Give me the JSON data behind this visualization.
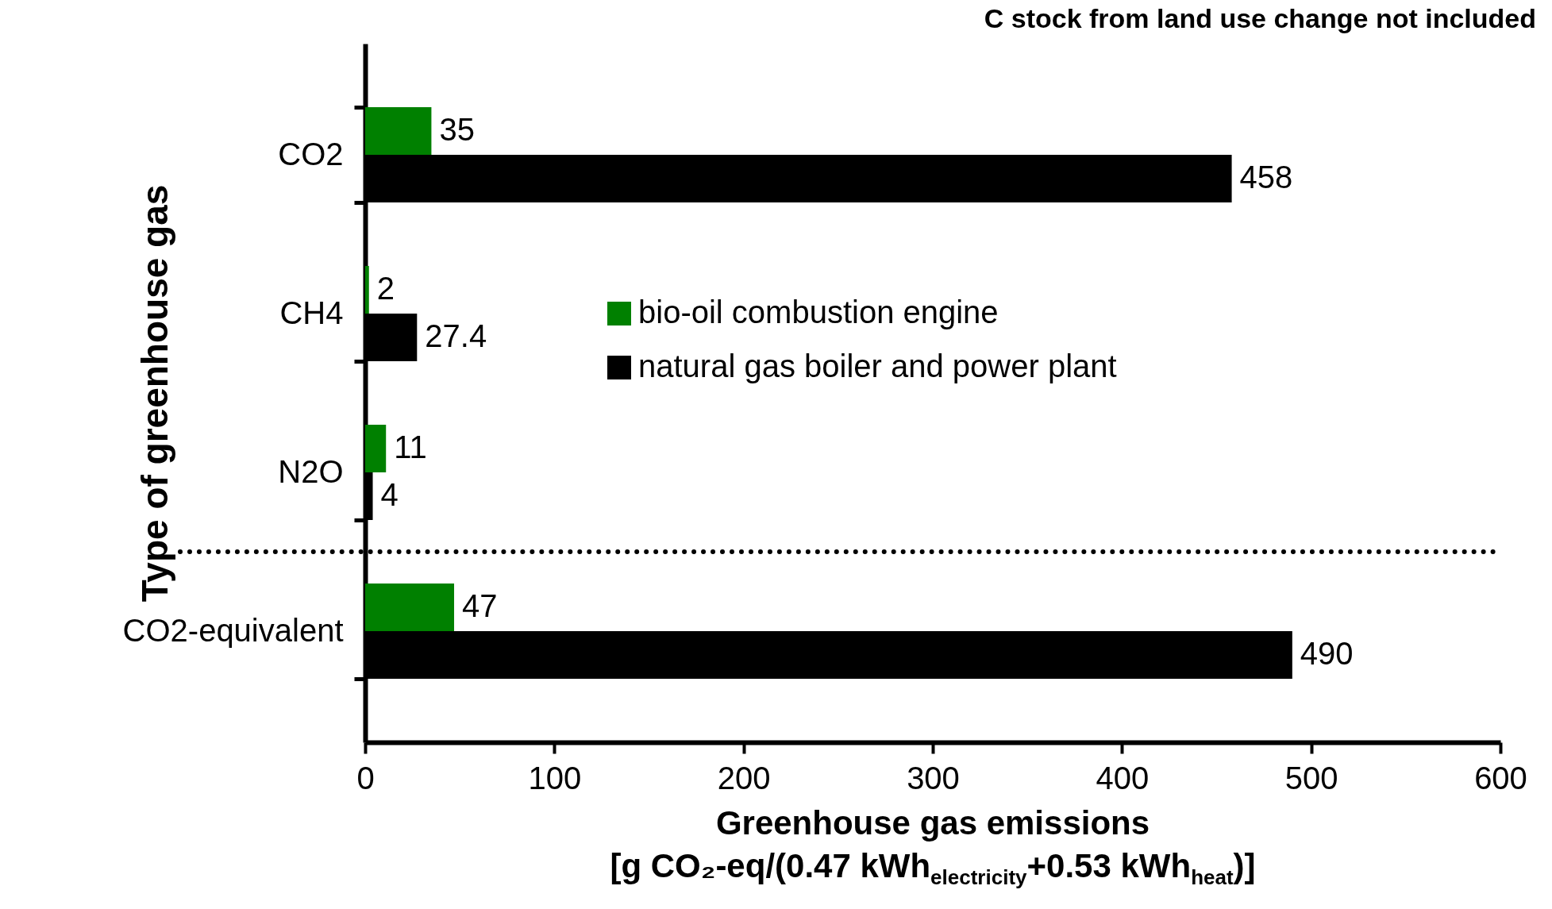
{
  "chart_data": {
    "type": "bar",
    "orientation": "horizontal",
    "categories": [
      "CO2",
      "CH4",
      "N2O",
      "CO2-equivalent"
    ],
    "series": [
      {
        "name": "bio-oil combustion engine",
        "color": "#008000",
        "values": [
          35,
          2,
          11,
          47
        ]
      },
      {
        "name": "natural gas boiler and power plant",
        "color": "#000000",
        "values": [
          458,
          27.4,
          4,
          490
        ]
      }
    ],
    "xlim": [
      0,
      600
    ],
    "xticks": [
      0,
      100,
      200,
      300,
      400,
      500,
      600
    ],
    "xlabel": "Greenhouse gas emissions\n[g CO₂-eq/(0.47 kWh$_{electricity}$+0.53 kWh$_{heat}$)]",
    "ylabel": "Type of greenhouse gas",
    "annotations": [
      "C stock from land use change not included"
    ],
    "data_labels": true,
    "legend": "center",
    "grid": false
  }
}
